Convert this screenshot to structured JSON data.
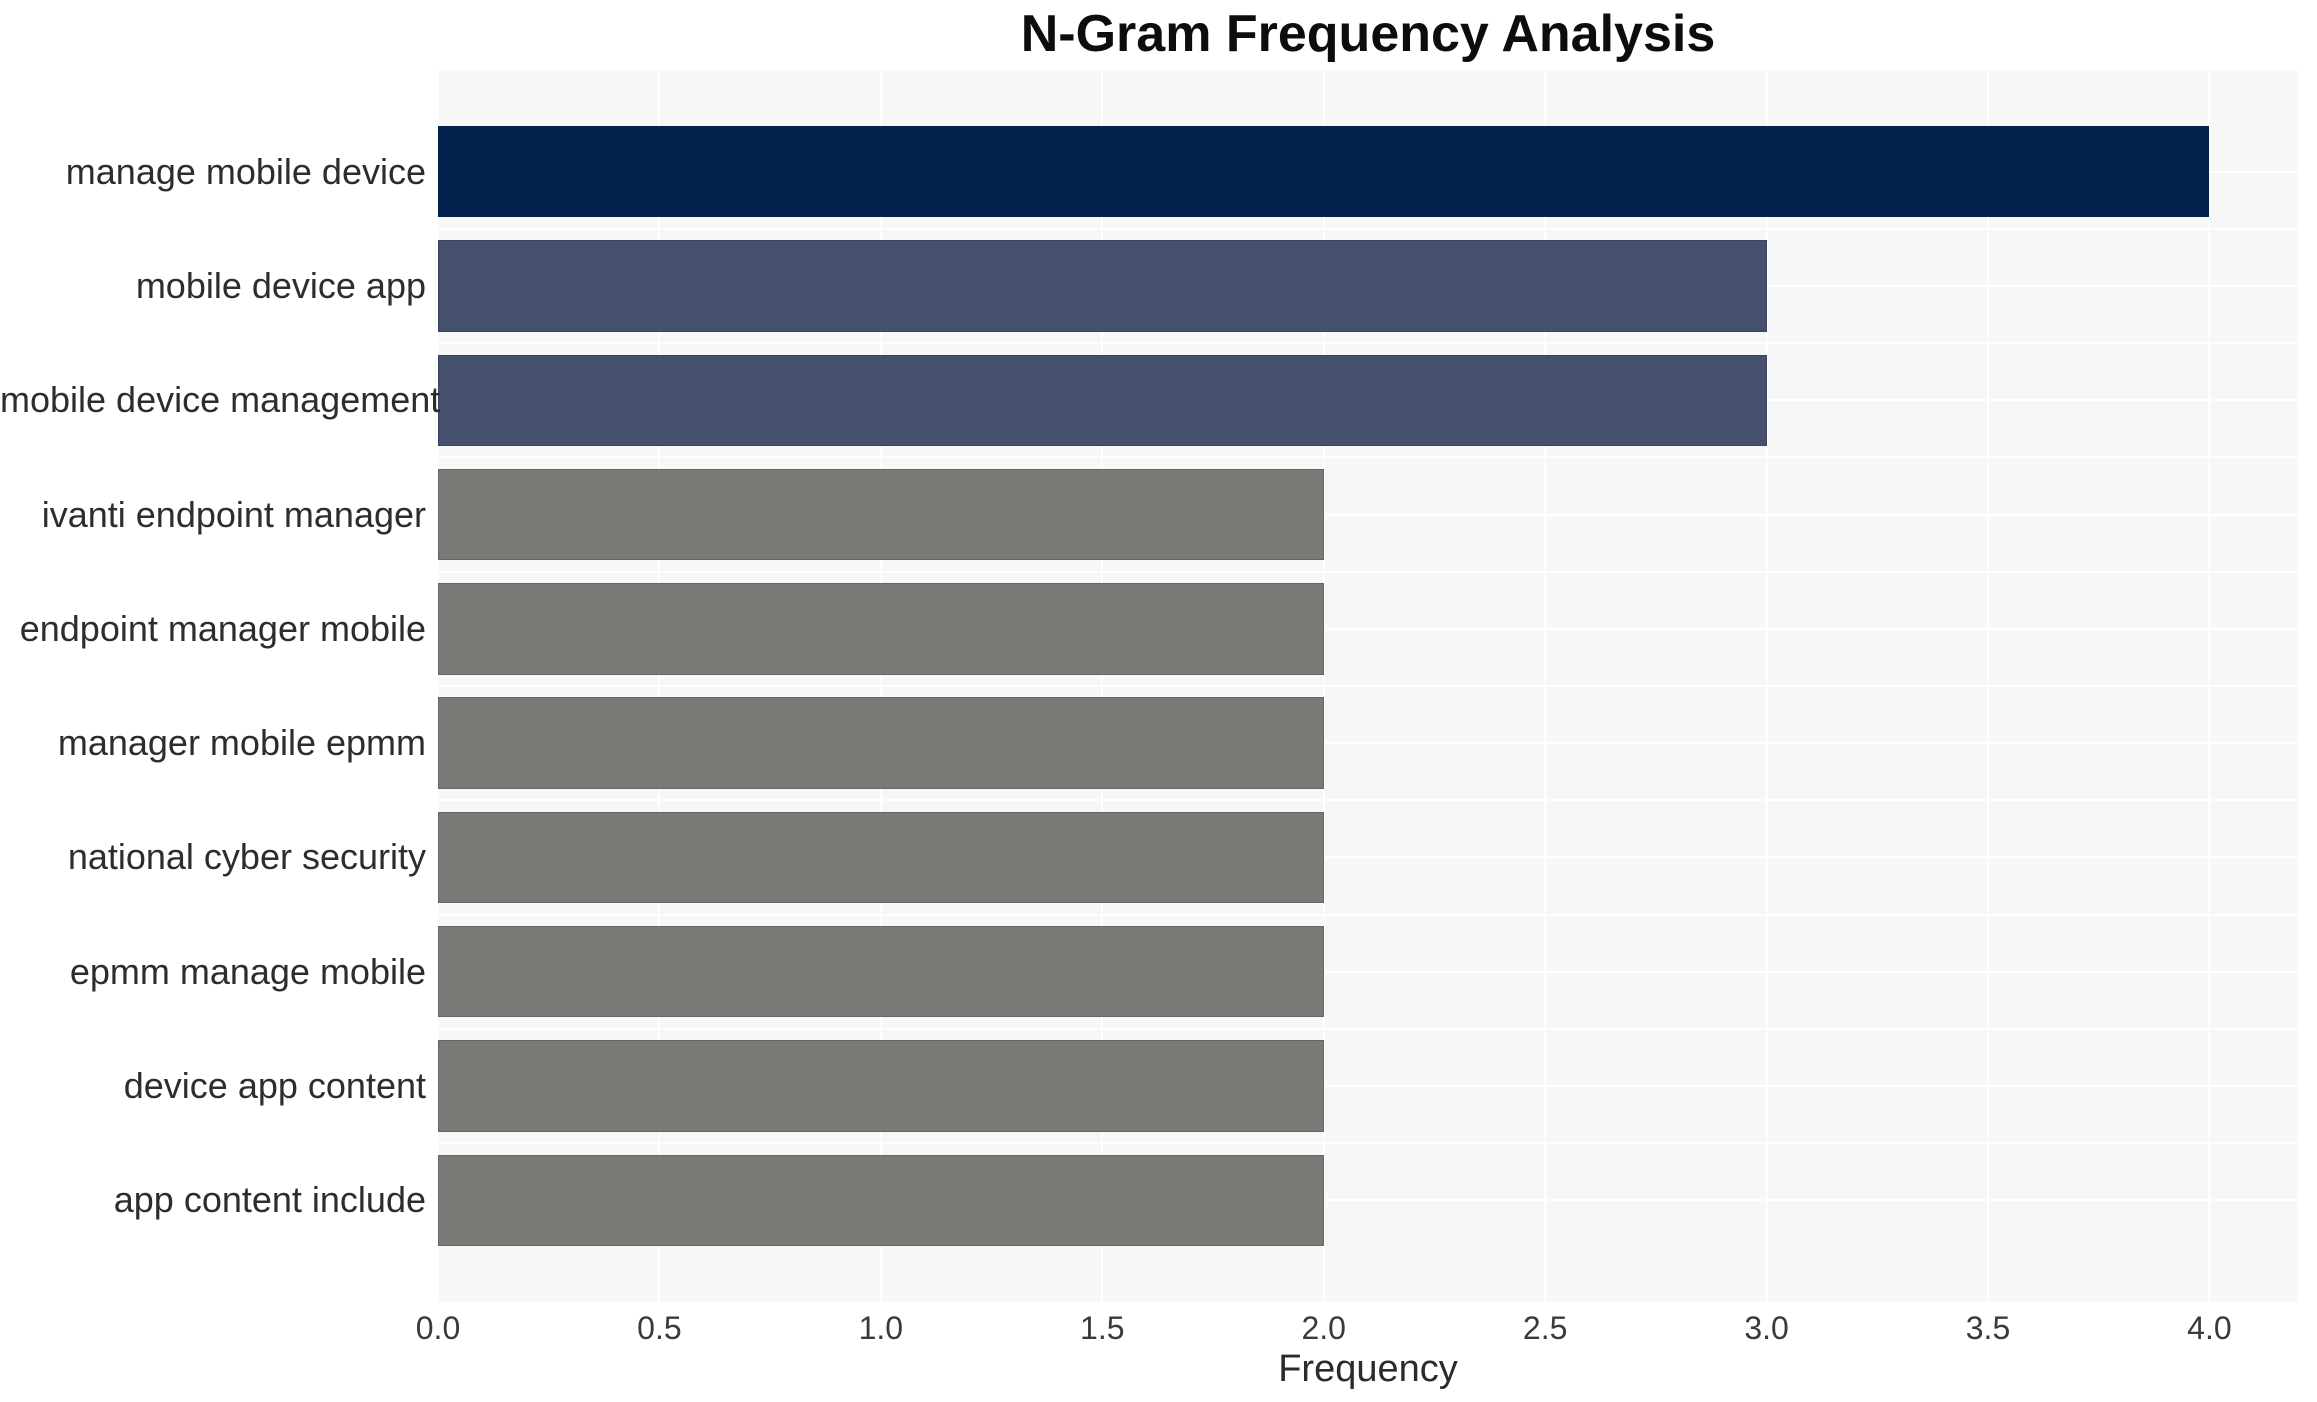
{
  "chart_data": {
    "type": "bar",
    "orientation": "horizontal",
    "title": "N-Gram Frequency Analysis",
    "xlabel": "Frequency",
    "ylabel": "",
    "categories": [
      "manage mobile device",
      "mobile device app",
      "mobile device management",
      "ivanti endpoint manager",
      "endpoint manager mobile",
      "manager mobile epmm",
      "national cyber security",
      "epmm manage mobile",
      "device app content",
      "app content include"
    ],
    "values": [
      4,
      3,
      3,
      2,
      2,
      2,
      2,
      2,
      2,
      2
    ],
    "xlim": [
      0,
      4.2
    ],
    "xticks": [
      "0.0",
      "0.5",
      "1.0",
      "1.5",
      "2.0",
      "2.5",
      "3.0",
      "3.5",
      "4.0"
    ],
    "grid": true,
    "legend": false,
    "bar_colors": [
      "#02234d",
      "#454f6e",
      "#454f6e",
      "#7b7a76",
      "#7b7a76",
      "#7b7a76",
      "#7b7a76",
      "#7b7a76",
      "#7b7a76",
      "#7b7a76"
    ]
  },
  "style": {
    "plot_background": "#f7f7f7",
    "grid_color": "#ffffff",
    "title_color": "#0d0d0d",
    "label_color": "#2d2d2d",
    "tick_color": "#3a3a3a"
  }
}
